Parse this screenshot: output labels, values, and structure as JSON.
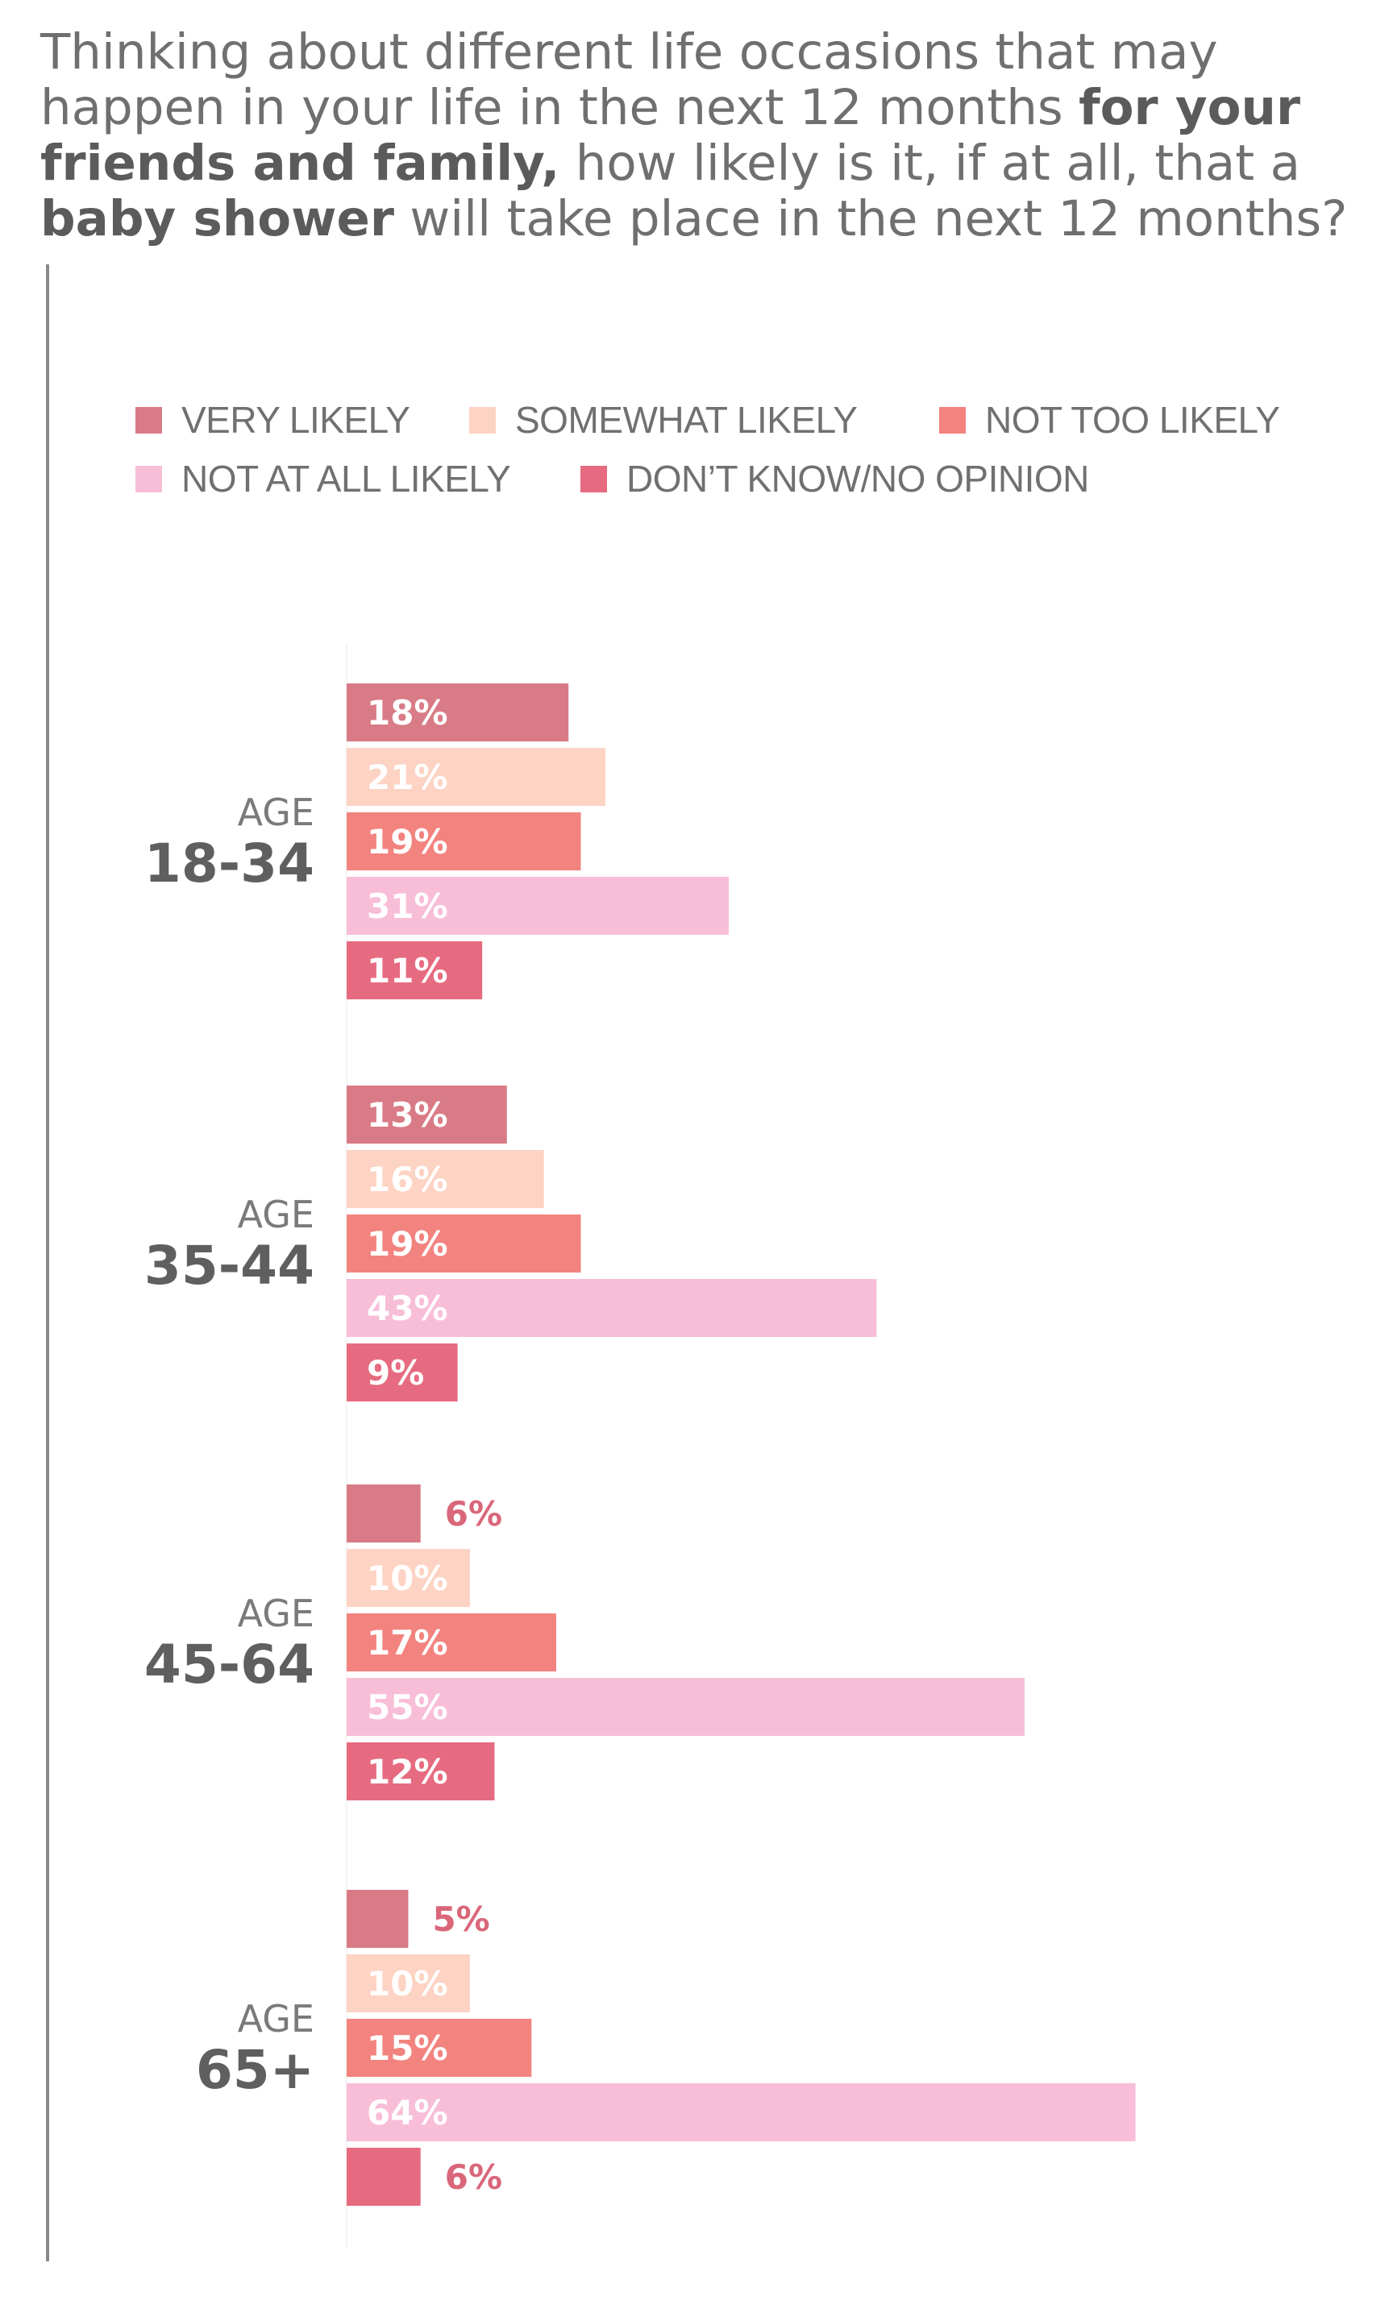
{
  "title": {
    "part1": "Thinking about different life occasions that may happen in your life in the next 12 months ",
    "bold1": "for your friends and family,",
    "part2": " how likely is it, if at all, that a ",
    "bold2": "baby shower",
    "part3": " will take place in the next 12 months?"
  },
  "legend": [
    {
      "label": "VERY LIKELY",
      "color": "#d97b86"
    },
    {
      "label": "SOMEWHAT LIKELY",
      "color": "#fdd3c3"
    },
    {
      "label": "NOT TOO LIKELY",
      "color": "#f2837f"
    },
    {
      "label": "NOT AT ALL LIKELY",
      "color": "#f8bed8"
    },
    {
      "label": "DON’T KNOW/NO OPINION",
      "color": "#e66b80"
    }
  ],
  "chart_data": {
    "type": "bar",
    "orientation": "horizontal",
    "title": "Thinking about different life occasions that may happen in your life in the next 12 months for your friends and family, how likely is it, if at all, that a baby shower will take place in the next 12 months?",
    "groups": [
      {
        "prefix": "AGE",
        "label": "18-34"
      },
      {
        "prefix": "AGE",
        "label": "35-44"
      },
      {
        "prefix": "AGE",
        "label": "45-64"
      },
      {
        "prefix": "AGE",
        "label": "65+"
      }
    ],
    "series": [
      {
        "name": "VERY LIKELY",
        "color": "#d97b86",
        "values": [
          18,
          13,
          6,
          5
        ],
        "labels": [
          "18%",
          "13%",
          "6%",
          "5%"
        ]
      },
      {
        "name": "SOMEWHAT LIKELY",
        "color": "#fdd3c3",
        "values": [
          21,
          16,
          10,
          10
        ],
        "labels": [
          "21%",
          "16%",
          "10%",
          "10%"
        ]
      },
      {
        "name": "NOT TOO LIKELY",
        "color": "#f2837f",
        "values": [
          19,
          19,
          17,
          15
        ],
        "labels": [
          "19%",
          "19%",
          "17%",
          "15%"
        ]
      },
      {
        "name": "NOT AT ALL LIKELY",
        "color": "#f8bed8",
        "values": [
          31,
          43,
          55,
          64
        ],
        "labels": [
          "31%",
          "43%",
          "55%",
          "64%"
        ]
      },
      {
        "name": "DON’T KNOW/NO OPINION",
        "color": "#e66b80",
        "values": [
          11,
          9,
          12,
          6
        ],
        "labels": [
          "11%",
          "9%",
          "12%",
          "6%"
        ]
      }
    ],
    "unit": "%",
    "xlim": [
      0,
      64
    ],
    "grid": false,
    "legend_position": "top"
  }
}
